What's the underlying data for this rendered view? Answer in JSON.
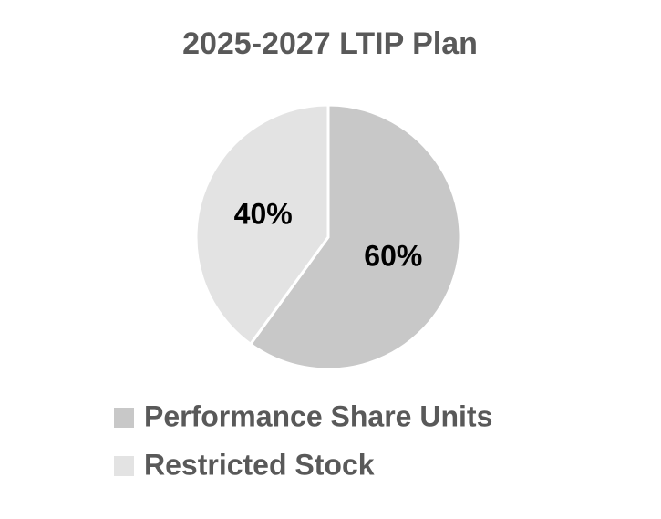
{
  "chart_data": {
    "type": "pie",
    "title": "2025-2027 LTIP Plan",
    "categories": [
      "Performance Share Units",
      "Restricted Stock"
    ],
    "values": [
      60,
      40
    ],
    "value_labels": [
      "60%",
      "40%"
    ],
    "colors": [
      "#c8c8c8",
      "#e3e3e3"
    ],
    "legend": "bottom"
  }
}
